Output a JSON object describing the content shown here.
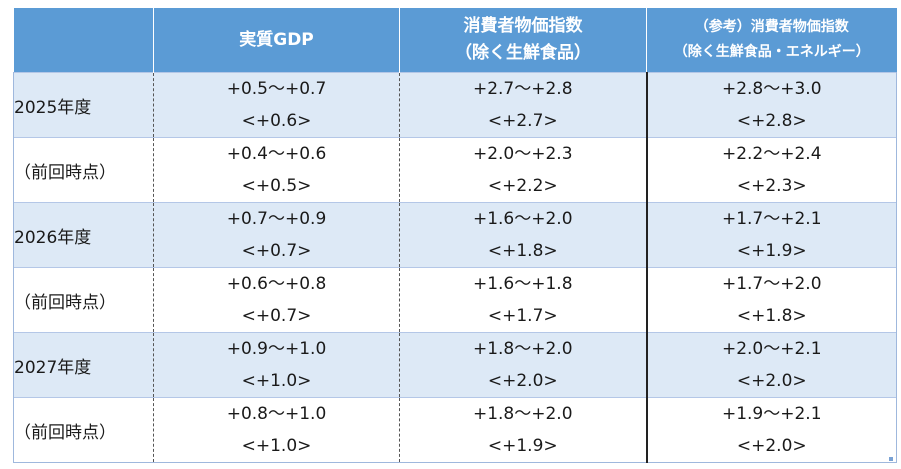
{
  "table": {
    "headers": {
      "col0": "",
      "col1": "実質GDP",
      "col2_line1": "消費者物価指数",
      "col2_line2": "（除く生鮮食品）",
      "col3_line1": "（参考）消費者物価指数",
      "col3_line2": "（除く生鮮食品・エネルギー）"
    },
    "rows": [
      {
        "label": "2025年度",
        "gdp_range": "+0.5～+0.7",
        "gdp_median": "<+0.6>",
        "cpi_range": "+2.7～+2.8",
        "cpi_median": "<+2.7>",
        "core_range": "+2.8～+3.0",
        "core_median": "<+2.8>"
      },
      {
        "label": "（前回時点）",
        "gdp_range": "+0.4～+0.6",
        "gdp_median": "<+0.5>",
        "cpi_range": "+2.0～+2.3",
        "cpi_median": "<+2.2>",
        "core_range": "+2.2～+2.4",
        "core_median": "<+2.3>"
      },
      {
        "label": "2026年度",
        "gdp_range": "+0.7～+0.9",
        "gdp_median": "<+0.7>",
        "cpi_range": "+1.6～+2.0",
        "cpi_median": "<+1.8>",
        "core_range": "+1.7～+2.1",
        "core_median": "<+1.9>"
      },
      {
        "label": "（前回時点）",
        "gdp_range": "+0.6～+0.8",
        "gdp_median": "<+0.7>",
        "cpi_range": "+1.6～+1.8",
        "cpi_median": "<+1.7>",
        "core_range": "+1.7～+2.0",
        "core_median": "<+1.8>"
      },
      {
        "label": "2027年度",
        "gdp_range": "+0.9～+1.0",
        "gdp_median": "<+1.0>",
        "cpi_range": "+1.8～+2.0",
        "cpi_median": "<+2.0>",
        "core_range": "+2.0～+2.1",
        "core_median": "<+2.0>"
      },
      {
        "label": "（前回時点）",
        "gdp_range": "+0.8～+1.0",
        "gdp_median": "<+1.0>",
        "cpi_range": "+1.8～+2.0",
        "cpi_median": "<+1.9>",
        "core_range": "+1.9～+2.1",
        "core_median": "<+2.0>"
      }
    ]
  },
  "colors": {
    "header_bg": "#5b9bd5",
    "row_shade": "#dde9f6",
    "row_plain": "#ffffff"
  }
}
